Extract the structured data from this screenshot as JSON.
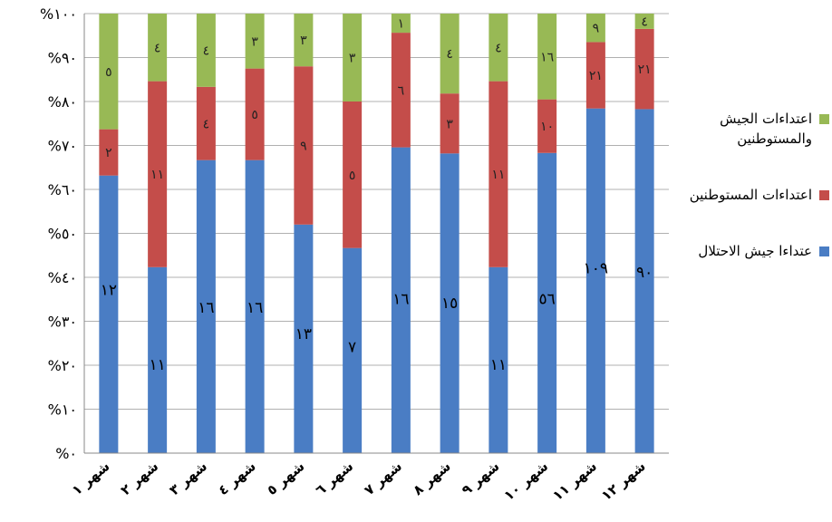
{
  "chart_data": {
    "type": "bar",
    "stacked": "percent",
    "categories": [
      "شهر ١",
      "شهر ٢",
      "شهر ٣",
      "شهر ٤",
      "شهر ٥",
      "شهر ٦",
      "شهر ٧",
      "شهر ٨",
      "شهر ٩",
      "شهر ١٠",
      "شهر ١١",
      "شهر ١٢"
    ],
    "y_ticks": [
      "%٠",
      "%١٠",
      "%٢٠",
      "%٣٠",
      "%٤٠",
      "%٥٠",
      "%٦٠",
      "%٧٠",
      "%٨٠",
      "%٩٠",
      "%١٠٠"
    ],
    "ylim": [
      0,
      100
    ],
    "grid": true,
    "legend_position": "right",
    "series": [
      {
        "name": "عتداءا جيش الاحتلال",
        "color": "#4a7dc4",
        "values": [
          12,
          11,
          16,
          16,
          13,
          7,
          16,
          15,
          11,
          56,
          109,
          90
        ],
        "labels": [
          "١٢",
          "١١",
          "١٦",
          "١٦",
          "١٣",
          "٧",
          "١٦",
          "١٥",
          "١١",
          "٥٦",
          "١٠٩",
          "٩٠"
        ],
        "label_pos": [
          0.37,
          0.2,
          0.33,
          0.33,
          0.27,
          0.24,
          0.35,
          0.34,
          0.2,
          0.35,
          0.42,
          0.41
        ]
      },
      {
        "name": "اعتداءات المستوطنين",
        "color": "#c44d4a",
        "values": [
          2,
          11,
          4,
          5,
          9,
          5,
          6,
          3,
          11,
          10,
          21,
          21
        ],
        "labels": [
          "٢",
          "١١",
          "٤",
          "٥",
          "٩",
          "٥",
          "٦",
          "٣",
          "١١",
          "١٠",
          "٢١",
          "٢١"
        ]
      },
      {
        "name": "اعتداءات الجيش والمستوطنين",
        "color": "#98b955",
        "values": [
          5,
          4,
          4,
          3,
          3,
          3,
          1,
          4,
          4,
          16,
          9,
          4
        ],
        "labels": [
          "٥",
          "٤",
          "٤",
          "٣",
          "٣",
          "٣",
          "١",
          "٤",
          "٤",
          "١٦",
          "٩",
          "٤"
        ]
      }
    ]
  },
  "legend": {
    "items": [
      {
        "lines": [
          "اعتداءات الجيش",
          "والمستوطنين"
        ],
        "color": "#98b955"
      },
      {
        "lines": [
          "اعتداءات المستوطنين"
        ],
        "color": "#c44d4a"
      },
      {
        "lines": [
          "عتداءا جيش الاحتلال"
        ],
        "color": "#4a7dc4"
      }
    ]
  }
}
